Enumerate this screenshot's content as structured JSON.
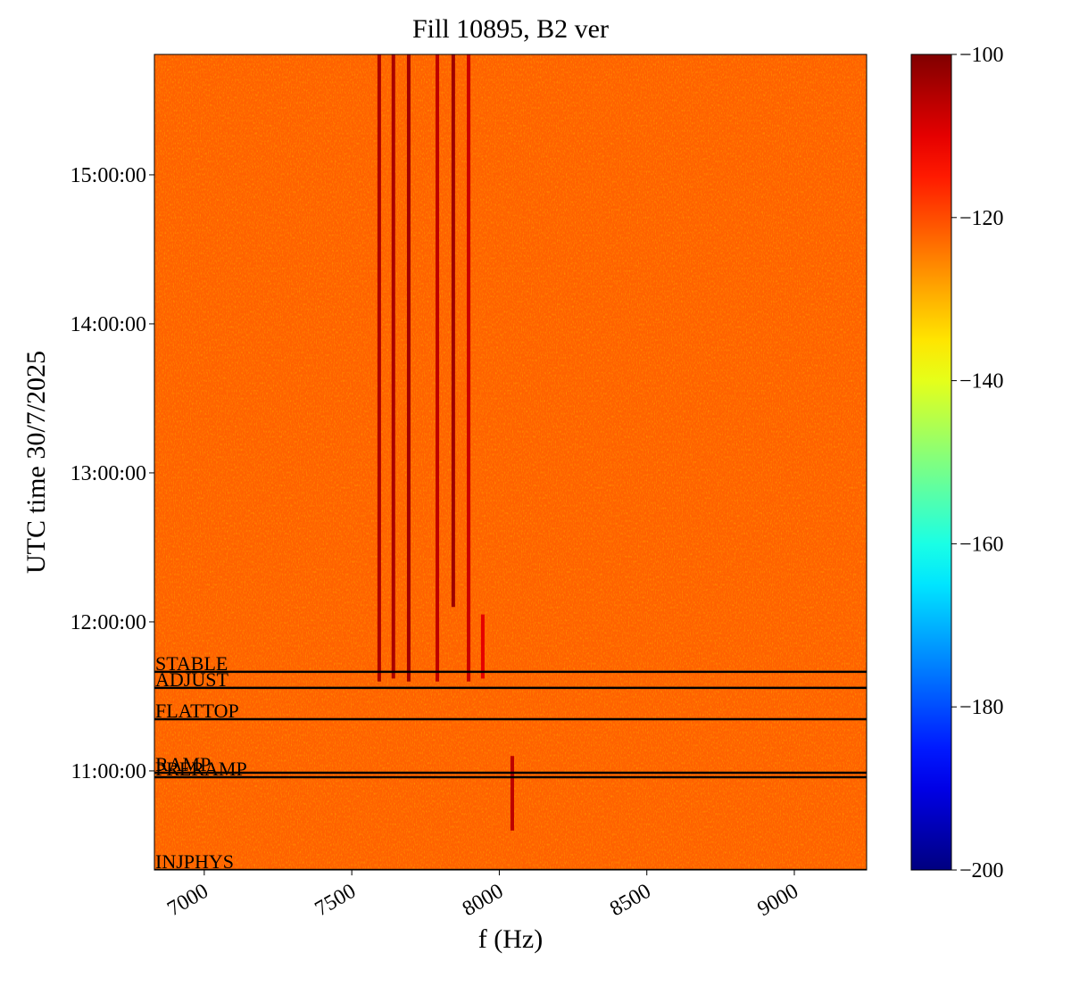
{
  "chart_data": {
    "type": "spectrogram",
    "title": "Fill 10895, B2 ver",
    "x_label": "f (Hz)",
    "y_label": "UTC time 30/7/2025",
    "xlim": [
      6831,
      9245
    ],
    "xticks": [
      7000,
      7500,
      8000,
      8500,
      9000
    ],
    "ylim": [
      10.335,
      15.808
    ],
    "yticks": [
      {
        "value": 11,
        "label": "11:00:00"
      },
      {
        "value": 12,
        "label": "12:00:00"
      },
      {
        "value": 13,
        "label": "13:00:00"
      },
      {
        "value": 14,
        "label": "14:00:00"
      },
      {
        "value": 15,
        "label": "15:00:00"
      }
    ],
    "colormap": "jet",
    "clim": [
      -200,
      -100
    ],
    "cticks": [
      {
        "value": -100,
        "label": "−100"
      },
      {
        "value": -120,
        "label": "−120"
      },
      {
        "value": -140,
        "label": "−140"
      },
      {
        "value": -160,
        "label": "−160"
      },
      {
        "value": -180,
        "label": "−180"
      },
      {
        "value": -200,
        "label": "−200"
      }
    ],
    "background_level": -122,
    "spectral_lines": [
      {
        "f": 7593,
        "t_start": 11.6,
        "t_end": 15.808,
        "level": -104
      },
      {
        "f": 7641,
        "t_start": 11.62,
        "t_end": 15.808,
        "level": -104
      },
      {
        "f": 7693,
        "t_start": 11.6,
        "t_end": 15.808,
        "level": -103
      },
      {
        "f": 7790,
        "t_start": 11.6,
        "t_end": 15.808,
        "level": -106
      },
      {
        "f": 7844,
        "t_start": 12.1,
        "t_end": 15.808,
        "level": -103
      },
      {
        "f": 7896,
        "t_start": 11.6,
        "t_end": 15.808,
        "level": -107
      },
      {
        "f": 7944,
        "t_start": 11.62,
        "t_end": 12.05,
        "level": -110
      },
      {
        "f": 8044,
        "t_start": 10.6,
        "t_end": 11.1,
        "level": -106
      }
    ],
    "annotations": [
      {
        "label": "STABLE",
        "time": 11.665
      },
      {
        "label": "ADJUST",
        "time": 11.557
      },
      {
        "label": "FLATTOP",
        "time": 11.347
      },
      {
        "label": "RAMP",
        "time": 10.988
      },
      {
        "label": "PRERAMP",
        "time": 10.958
      },
      {
        "label": "INJPHYS",
        "time": 10.335
      }
    ]
  }
}
